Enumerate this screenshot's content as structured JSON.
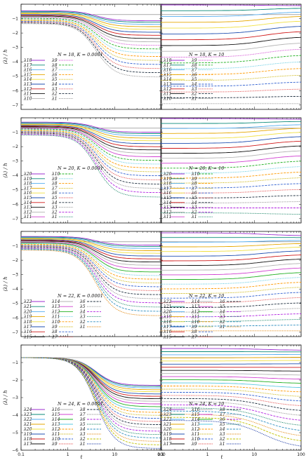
{
  "figure": {
    "ylabel": "⟨λ⟩ / ℏ",
    "xlabel": "t"
  },
  "chart_data": [
    {
      "type": "line",
      "col": 0,
      "row": 0,
      "title": "N = 18, K = 0.0001",
      "N": 18,
      "K": "0.0001",
      "xscale": "log",
      "xlim": [
        0.1,
        100
      ],
      "ylim": [
        -7.3,
        0
      ],
      "yticks": [
        -7,
        -6,
        -5,
        -4,
        -3,
        -2,
        -1
      ],
      "xticks": [
        "0.1",
        "1",
        "10",
        "100"
      ],
      "hline": -0.72,
      "legend": {
        "placement": "bottom-left",
        "columns": [
          [
            "λ18",
            "λ17",
            "λ16",
            "λ15",
            "λ14",
            "λ13",
            "λ12",
            "λ11",
            "λ10"
          ],
          [
            "λ9",
            "λ8",
            "λ7",
            "λ6",
            "λ5",
            "λ4",
            "λ3",
            "λ2",
            "λ1"
          ]
        ]
      },
      "initial_range": [
        -0.45,
        -1.35
      ],
      "final_range": [
        -1.15,
        -5.05
      ]
    },
    {
      "type": "line",
      "col": 1,
      "row": 0,
      "title": "N = 18, K = 10",
      "N": 18,
      "K": "10",
      "xscale": "log",
      "xlim": [
        0.1,
        100
      ],
      "ylim": [
        -7.3,
        0
      ],
      "hline": -0.72,
      "legend": {
        "placement": "bottom-left",
        "columns": [
          [
            "λ18",
            "λ17",
            "λ16",
            "λ15",
            "λ14",
            "λ13",
            "λ12",
            "λ11",
            "λ10"
          ],
          [
            "λ9",
            "λ8",
            "λ7",
            "λ6",
            "λ5",
            "λ4",
            "λ3",
            "λ2",
            "λ1"
          ]
        ]
      },
      "initial_range": [
        -0.05,
        -6.9
      ],
      "final_range": [
        -0.1,
        -6.9
      ]
    },
    {
      "type": "line",
      "col": 0,
      "row": 1,
      "title": "N = 20, K = 0.0001",
      "N": 20,
      "K": "0.0001",
      "xscale": "log",
      "xlim": [
        0.1,
        100
      ],
      "ylim": [
        -7.3,
        0
      ],
      "yticks": [
        -7,
        -6,
        -5,
        -4,
        -3,
        -2,
        -1
      ],
      "xticks": [
        "0.1",
        "1",
        "10",
        "100"
      ],
      "hline": -0.72,
      "legend": {
        "placement": "bottom-left",
        "columns": [
          [
            "λ20",
            "λ19",
            "λ18",
            "λ17",
            "λ16",
            "λ15",
            "λ14",
            "λ13",
            "λ12",
            "λ11"
          ],
          [
            "λ10",
            "λ9",
            "λ8",
            "λ7",
            "λ6",
            "λ5",
            "λ4",
            "λ3",
            "λ2",
            "λ1"
          ]
        ]
      },
      "initial_range": [
        -0.3,
        -1.2
      ],
      "final_range": [
        -1.0,
        -5.5
      ]
    },
    {
      "type": "line",
      "col": 1,
      "row": 1,
      "title": "N = 20, K = 10",
      "N": 20,
      "K": "10",
      "xscale": "log",
      "xlim": [
        0.1,
        100
      ],
      "ylim": [
        -7.3,
        0
      ],
      "hline": -0.72,
      "legend": {
        "placement": "bottom-left",
        "columns": [
          [
            "λ20",
            "λ19",
            "λ18",
            "λ17",
            "λ16",
            "λ15",
            "λ14",
            "λ13",
            "λ12",
            "λ11"
          ],
          [
            "λ10",
            "λ9",
            "λ8",
            "λ7",
            "λ6",
            "λ5",
            "λ4",
            "λ3",
            "λ2",
            "λ1"
          ]
        ]
      },
      "initial_range": [
        -0.05,
        -6.6
      ],
      "final_range": [
        -0.1,
        -6.7
      ]
    },
    {
      "type": "line",
      "col": 0,
      "row": 2,
      "title": "N = 22, K = 0.0001",
      "N": 22,
      "K": "0.0001",
      "xscale": "log",
      "xlim": [
        0.1,
        100
      ],
      "ylim": [
        -7.3,
        0
      ],
      "yticks": [
        -7,
        -6,
        -5,
        -4,
        -3,
        -2,
        -1
      ],
      "xticks": [
        "0.1",
        "1",
        "10",
        "100"
      ],
      "hline": -0.72,
      "legend": {
        "placement": "bottom-left",
        "columns": [
          [
            "λ22",
            "λ21",
            "λ20",
            "λ19",
            "λ18",
            "λ17",
            "λ16",
            "λ15"
          ],
          [
            "λ14",
            "λ13",
            "λ12",
            "λ11",
            "λ10",
            "λ9",
            "λ8",
            "λ7"
          ],
          [
            "λ6",
            "λ5",
            "λ4",
            "λ3",
            "λ2",
            "λ1"
          ]
        ]
      },
      "initial_range": [
        -0.35,
        -1.3
      ],
      "final_range": [
        -0.95,
        -5.85
      ]
    },
    {
      "type": "line",
      "col": 1,
      "row": 2,
      "title": "N = 22, K = 10",
      "N": 22,
      "K": "10",
      "xscale": "log",
      "xlim": [
        0.1,
        100
      ],
      "ylim": [
        -7.3,
        0
      ],
      "hline": -0.72,
      "legend": {
        "placement": "bottom-left",
        "columns": [
          [
            "λ22",
            "λ21",
            "λ20",
            "λ19",
            "λ18",
            "λ17",
            "λ16",
            "λ15"
          ],
          [
            "λ14",
            "λ13",
            "λ12",
            "λ11",
            "λ10",
            "λ9",
            "λ8",
            "λ7"
          ],
          [
            "λ6",
            "λ5",
            "λ4",
            "λ3",
            "λ2",
            "λ1"
          ]
        ]
      },
      "initial_range": [
        -0.1,
        -6.9
      ],
      "final_range": [
        -0.3,
        -6.9
      ]
    },
    {
      "type": "line",
      "col": 0,
      "row": 3,
      "title": "N = 24, K = 0.0001",
      "N": 24,
      "K": "0.0001",
      "xscale": "log",
      "xlim": [
        0.1,
        100
      ],
      "ylim": [
        -6,
        0
      ],
      "yticks": [
        -6,
        -5,
        -4,
        -3,
        -2,
        -1
      ],
      "xticks": [
        "0.1",
        "1",
        "10",
        "100"
      ],
      "hline": -0.72,
      "legend": {
        "placement": "bottom-left",
        "columns": [
          [
            "λ24",
            "λ23",
            "λ22",
            "λ21",
            "λ20",
            "λ19",
            "λ18",
            "λ17"
          ],
          [
            "λ16",
            "λ15",
            "λ14",
            "λ13",
            "λ12",
            "λ11",
            "λ10",
            "λ9"
          ],
          [
            "λ8",
            "λ7",
            "λ6",
            "λ5",
            "λ4",
            "λ3",
            "λ2",
            "λ1"
          ]
        ]
      },
      "initial_range": [
        -0.72,
        -0.72
      ],
      "final_range": [
        -2.3,
        -5.9
      ]
    },
    {
      "type": "line",
      "col": 1,
      "row": 3,
      "title": "N = 24, K = 10",
      "N": 24,
      "K": "10",
      "xscale": "log",
      "xlim": [
        0.1,
        100
      ],
      "ylim": [
        -6,
        0
      ],
      "hline": -0.72,
      "legend": {
        "placement": "bottom-left",
        "columns": [
          [
            "λ24",
            "λ23",
            "λ22",
            "λ21",
            "λ20",
            "λ19",
            "λ18",
            "λ17"
          ],
          [
            "λ16",
            "λ15",
            "λ14",
            "λ13",
            "λ12",
            "λ11",
            "λ10",
            "λ9"
          ],
          [
            "λ8",
            "λ7",
            "λ6",
            "λ5",
            "λ4",
            "λ3",
            "λ2",
            "λ1"
          ]
        ]
      },
      "initial_range": [
        -0.2,
        -4.3
      ],
      "final_range": [
        -0.3,
        -5.9
      ]
    }
  ],
  "palette": [
    "#9d2fd0",
    "#0a8a78",
    "#55aef0",
    "#e6a700",
    "#f0e040",
    "#1f4fb0",
    "#d01818",
    "#111111",
    "#b3b3b3",
    "#d040d0",
    "#20b020",
    "#5ac8e0",
    "#ff9900",
    "#c8b000",
    "#3060d0",
    "#e04040",
    "#203040",
    "#8a8a8a",
    "#b020e0",
    "#108060",
    "#3090c0",
    "#e08000",
    "#c0c000",
    "#1030a0"
  ]
}
